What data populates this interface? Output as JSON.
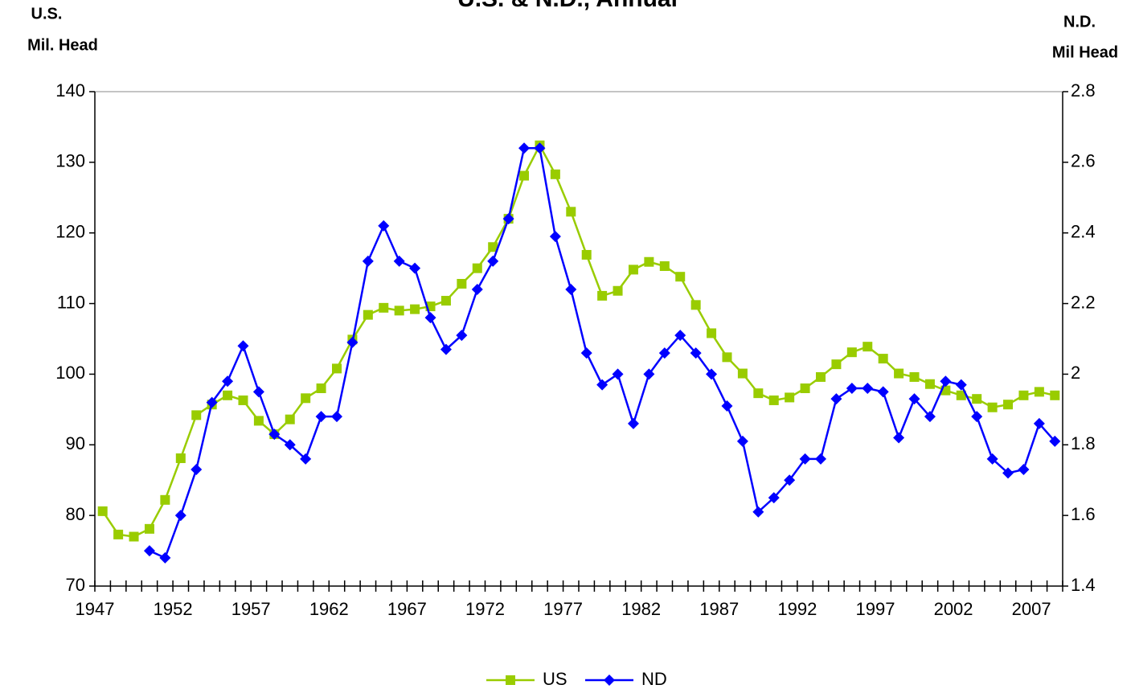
{
  "chart_data": {
    "type": "line",
    "title": "U.S. & N.D., Annual",
    "ylabel": [
      "U.S.",
      "Mil. Head"
    ],
    "y2label": [
      "N.D.",
      "Mil Head"
    ],
    "categories": [
      "1947",
      null,
      null,
      null,
      null,
      "1952",
      null,
      null,
      null,
      null,
      "1957",
      null,
      null,
      null,
      null,
      "1962",
      null,
      null,
      null,
      null,
      "1967",
      null,
      null,
      null,
      null,
      "1972",
      null,
      null,
      null,
      null,
      "1977",
      null,
      null,
      null,
      null,
      "1982",
      null,
      null,
      null,
      null,
      "1987",
      null,
      null,
      null,
      null,
      "1992",
      null,
      null,
      null,
      null,
      "1997",
      null,
      null,
      null,
      null,
      "2002",
      null,
      null,
      null,
      null,
      "2007",
      null
    ],
    "series": [
      {
        "name": "US",
        "color": "#99cc00",
        "marker": "square",
        "values": [
          80.6,
          77.3,
          77.0,
          78.1,
          82.2,
          88.1,
          94.2,
          95.7,
          97.0,
          96.3,
          93.4,
          91.5,
          93.6,
          96.6,
          98.0,
          100.8,
          104.9,
          108.4,
          109.4,
          109.0,
          109.2,
          109.6,
          110.4,
          112.8,
          115.0,
          118.0,
          122.0,
          128.1,
          132.4,
          128.3,
          123.0,
          116.9,
          111.1,
          111.8,
          114.8,
          115.9,
          115.3,
          113.8,
          109.8,
          105.8,
          102.4,
          100.1,
          97.3,
          96.3,
          96.7,
          98.0,
          99.6,
          101.4,
          103.1,
          103.9,
          102.2,
          100.1,
          99.6,
          98.6,
          97.7,
          97.0,
          96.5,
          95.3,
          95.7,
          97.0,
          97.5,
          97.0
        ]
      },
      {
        "name": "ND",
        "color": "#0000ff",
        "marker": "diamond",
        "axis": "y2",
        "values": [
          null,
          null,
          null,
          1.5,
          1.48,
          1.6,
          1.73,
          1.92,
          1.98,
          2.08,
          1.95,
          1.83,
          1.8,
          1.76,
          1.88,
          1.88,
          2.09,
          2.32,
          2.42,
          2.32,
          2.3,
          2.16,
          2.07,
          2.11,
          2.24,
          2.32,
          2.44,
          2.64,
          2.64,
          2.39,
          2.24,
          2.06,
          1.97,
          2.0,
          1.86,
          2.0,
          2.06,
          2.11,
          2.06,
          2.0,
          1.91,
          1.81,
          1.61,
          1.65,
          1.7,
          1.76,
          1.76,
          1.93,
          1.96,
          1.96,
          1.95,
          1.82,
          1.93,
          1.88,
          1.98,
          1.97,
          1.88,
          1.76,
          1.72,
          1.73,
          1.86,
          1.81
        ]
      }
    ],
    "ylim": [
      70,
      140
    ],
    "yticks": [
      70,
      80,
      90,
      100,
      110,
      120,
      130,
      140
    ],
    "y2lim": [
      1.4,
      2.8
    ],
    "y2ticks": [
      {
        "value": 1.4,
        "label": "1.4"
      },
      {
        "value": 1.6,
        "label": "1.6"
      },
      {
        "value": 1.8,
        "label": "1.8"
      },
      2,
      {
        "value": 2.2,
        "label": "2.2"
      },
      {
        "value": 2.4,
        "label": "2.4"
      },
      {
        "value": 2.6,
        "label": "2.6"
      },
      {
        "value": 2.8,
        "label": "2.8"
      }
    ],
    "grid": false,
    "legend": "bottom"
  }
}
